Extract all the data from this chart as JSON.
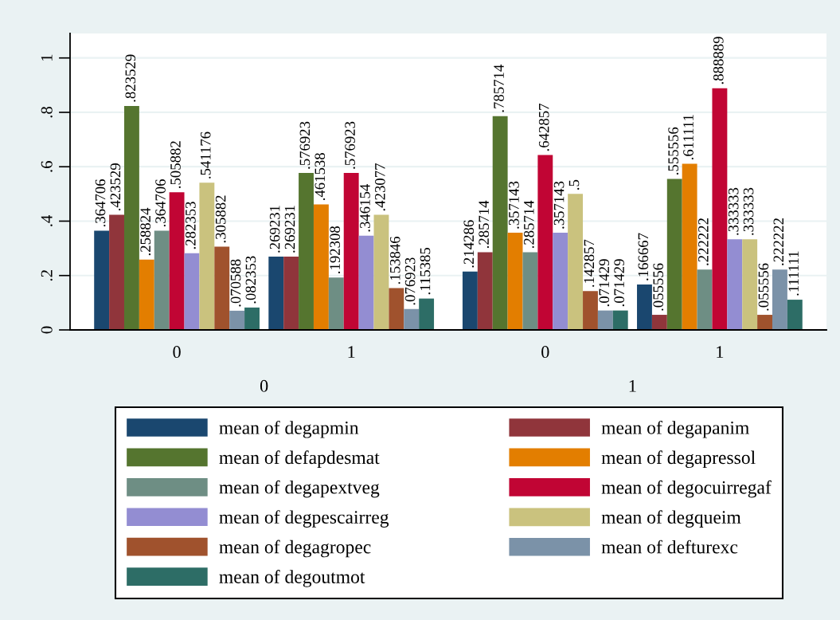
{
  "chart_data": {
    "type": "bar",
    "categories": [
      "0",
      "1",
      "0",
      "1"
    ],
    "annotations": [
      "0",
      "1"
    ],
    "series": [
      {
        "name": "mean of degapmin",
        "color": "#1a476f",
        "values": [
          0.364706,
          0.269231,
          0.214286,
          0.166667
        ],
        "value_labels": [
          ".364706",
          ".269231",
          ".214286",
          ".166667"
        ]
      },
      {
        "name": "mean of degapanim",
        "color": "#90353b",
        "values": [
          0.423529,
          0.269231,
          0.285714,
          0.055556
        ],
        "value_labels": [
          ".423529",
          ".269231",
          ".285714",
          ".055556"
        ]
      },
      {
        "name": "mean of defapdesmat",
        "color": "#55752f",
        "values": [
          0.823529,
          0.576923,
          0.785714,
          0.555556
        ],
        "value_labels": [
          ".823529",
          ".576923",
          ".785714",
          ".555556"
        ]
      },
      {
        "name": "mean of degapressol",
        "color": "#e37e00",
        "values": [
          0.258824,
          0.461538,
          0.357143,
          0.611111
        ],
        "value_labels": [
          ".258824",
          ".461538",
          ".357143",
          ".611111"
        ]
      },
      {
        "name": "mean of degapextveg",
        "color": "#6e8e84",
        "values": [
          0.364706,
          0.192308,
          0.285714,
          0.222222
        ],
        "value_labels": [
          ".364706",
          ".192308",
          ".285714",
          ".222222"
        ]
      },
      {
        "name": "mean of degocuirregaf",
        "color": "#c10534",
        "values": [
          0.505882,
          0.576923,
          0.642857,
          0.888889
        ],
        "value_labels": [
          ".505882",
          ".576923",
          ".642857",
          ".888889"
        ]
      },
      {
        "name": "mean of degpescairreg",
        "color": "#938dd2",
        "values": [
          0.282353,
          0.346154,
          0.357143,
          0.333333
        ],
        "value_labels": [
          ".282353",
          ".346154",
          ".357143",
          ".333333"
        ]
      },
      {
        "name": "mean of degqueim",
        "color": "#cac27e",
        "values": [
          0.541176,
          0.423077,
          0.5,
          0.333333
        ],
        "value_labels": [
          ".541176",
          ".423077",
          ".5",
          ".333333"
        ]
      },
      {
        "name": "mean of degagropec",
        "color": "#a0522d",
        "values": [
          0.305882,
          0.153846,
          0.142857,
          0.055556
        ],
        "value_labels": [
          ".305882",
          ".153846",
          ".142857",
          ".055556"
        ]
      },
      {
        "name": "mean of defturexc",
        "color": "#7b92a8",
        "values": [
          0.070588,
          0.076923,
          0.071429,
          0.222222
        ],
        "value_labels": [
          ".070588",
          ".076923",
          ".071429",
          ".222222"
        ]
      },
      {
        "name": "mean of degoutmot",
        "color": "#2d6d66",
        "values": [
          0.082353,
          0.115385,
          0.071429,
          0.111111
        ],
        "value_labels": [
          ".082353",
          ".115385",
          ".071429",
          ".111111"
        ]
      }
    ],
    "ylim": [
      0,
      1.09
    ],
    "yticks": [
      0,
      {
        "value": 0.2,
        "label": ".2"
      },
      {
        "value": 0.4,
        "label": ".4"
      },
      {
        "value": 0.6,
        "label": ".6"
      },
      {
        "value": 0.8,
        "label": ".8"
      },
      1
    ],
    "grid": "y",
    "legend": "bottom"
  }
}
